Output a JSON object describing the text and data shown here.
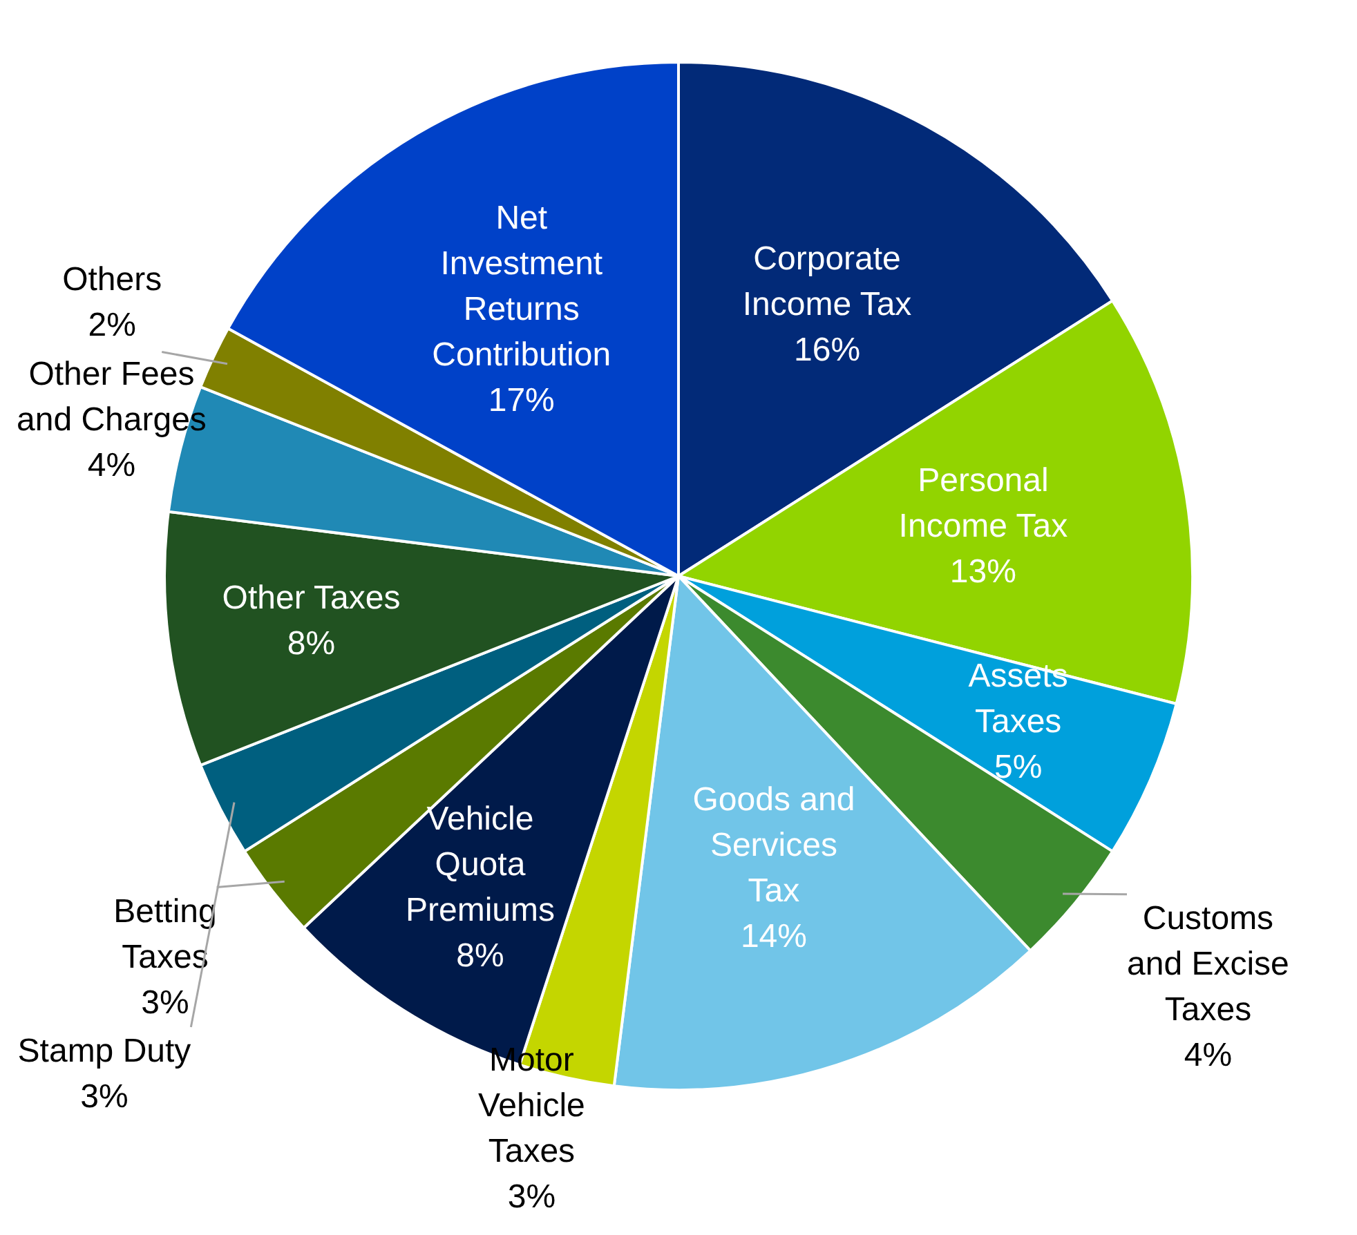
{
  "chart_data": {
    "type": "pie",
    "categories": [
      "Corporate Income Tax",
      "Personal Income Tax",
      "Assets Taxes",
      "Customs and Excise Taxes",
      "Goods and Services Tax",
      "Motor Vehicle Taxes",
      "Vehicle Quota Premiums",
      "Betting Taxes",
      "Stamp Duty",
      "Other Taxes",
      "Other Fees and Charges",
      "Others",
      "Net Investment Returns Contribution"
    ],
    "values": [
      16,
      13,
      5,
      4,
      14,
      3,
      8,
      3,
      3,
      8,
      4,
      2,
      17
    ],
    "value_labels": [
      "16%",
      "13%",
      "5%",
      "4%",
      "14%",
      "3%",
      "8%",
      "3%",
      "3%",
      "8%",
      "4%",
      "2%",
      "17%"
    ],
    "colors": [
      "#022a78",
      "#92d400",
      "#00a0dc",
      "#3c8a2e",
      "#71c5e8",
      "#c4d600",
      "#001a4a",
      "#5a7a00",
      "#005f7f",
      "#215221",
      "#2089b5",
      "#808000",
      "#0041c8"
    ],
    "legend": false
  }
}
